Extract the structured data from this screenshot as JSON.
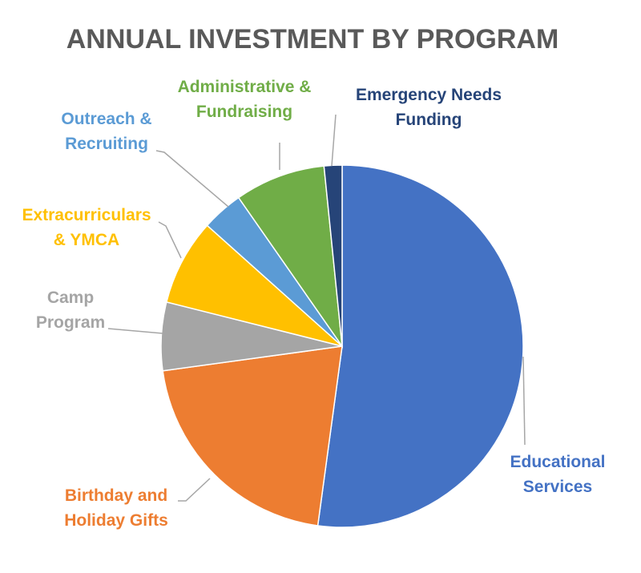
{
  "chart_data": {
    "type": "pie",
    "title": "ANNUAL INVESTMENT BY PROGRAM",
    "start_angle_deg": 0,
    "direction": "clockwise",
    "legend": "none (outside labels with leader lines)",
    "slices": [
      {
        "label": [
          "Educational",
          "Services"
        ],
        "value": 52.2,
        "color": "#4472C4"
      },
      {
        "label": [
          "Birthday and",
          "Holiday Gifts"
        ],
        "value": 20.7,
        "color": "#ED7D31"
      },
      {
        "label": [
          "Camp",
          "Program"
        ],
        "value": 6.1,
        "color": "#A5A5A5"
      },
      {
        "label": [
          "Extracurriculars",
          "& YMCA"
        ],
        "value": 7.7,
        "color": "#FFC000"
      },
      {
        "label": [
          "Outreach &",
          "Recruiting"
        ],
        "value": 3.7,
        "color": "#5B9BD5"
      },
      {
        "label": [
          "Administrative &",
          "Fundraising"
        ],
        "value": 8.1,
        "color": "#70AD47"
      },
      {
        "label": [
          "Emergency Needs",
          "Funding"
        ],
        "value": 1.6,
        "color": "#264478"
      }
    ]
  }
}
